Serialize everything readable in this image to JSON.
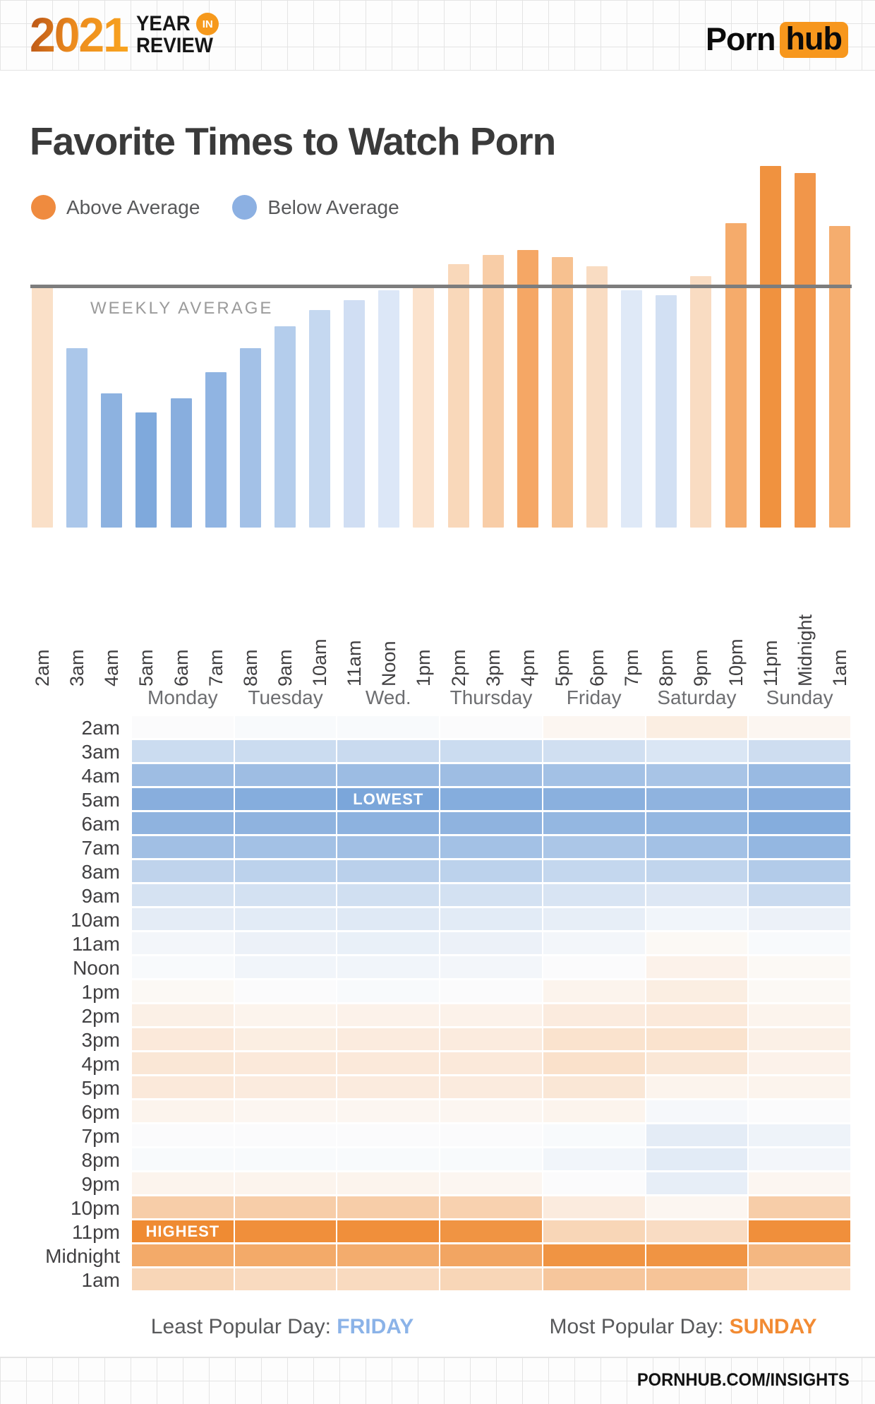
{
  "header": {
    "year": "2021",
    "tagline_word1": "YEAR",
    "tagline_in": "IN",
    "tagline_word2": "REVIEW",
    "brand_left": "Porn",
    "brand_right": "hub"
  },
  "title": "Favorite Times to Watch Porn",
  "legend": {
    "above": {
      "label": "Above Average",
      "color": "#ef8b3f"
    },
    "below": {
      "label": "Below Average",
      "color": "#8cb0e2"
    }
  },
  "chart_data": [
    {
      "type": "bar",
      "title": "Favorite Times to Watch Porn - traffic by hour",
      "categories": [
        "2am",
        "3am",
        "4am",
        "5am",
        "6am",
        "7am",
        "8am",
        "9am",
        "10am",
        "11am",
        "Noon",
        "1pm",
        "2pm",
        "3pm",
        "4pm",
        "5pm",
        "6pm",
        "7pm",
        "8pm",
        "9pm",
        "10pm",
        "11pm",
        "Midnight",
        "1am"
      ],
      "values": [
        101,
        75,
        56,
        48,
        54,
        65,
        75,
        84,
        91,
        95,
        99,
        101,
        110,
        114,
        116,
        113,
        109,
        99,
        97,
        105,
        127,
        151,
        148,
        126
      ],
      "bar_colors": [
        "#fae0c8",
        "#abc7ea",
        "#8db2e0",
        "#7fa9dc",
        "#88aede",
        "#90b4e2",
        "#a3c1e7",
        "#b4cdec",
        "#c5d8f0",
        "#d0def3",
        "#dce7f7",
        "#fbe2cc",
        "#f9d8ba",
        "#f8cda7",
        "#f5a765",
        "#f7c190",
        "#f9dcc2",
        "#dfe9f7",
        "#d2e0f3",
        "#f9dcc2",
        "#f5ab6b",
        "#f0923f",
        "#f1964a",
        "#f5ad6e"
      ],
      "average_line": {
        "label": "WEEKLY AVERAGE",
        "value": 100
      },
      "ylim": [
        0,
        160
      ],
      "unit": "index relative to weekly average (100 = average)",
      "grid": false,
      "legend_position": "top-left"
    },
    {
      "type": "heatmap",
      "title": "Traffic by day of week and hour",
      "columns": [
        "Monday",
        "Tuesday",
        "Wed.",
        "Thursday",
        "Friday",
        "Saturday",
        "Sunday"
      ],
      "rows": [
        "2am",
        "3am",
        "4am",
        "5am",
        "6am",
        "7am",
        "8am",
        "9am",
        "10am",
        "11am",
        "Noon",
        "1pm",
        "2pm",
        "3pm",
        "4pm",
        "5pm",
        "6pm",
        "7pm",
        "8pm",
        "9pm",
        "10pm",
        "11pm",
        "Midnight",
        "1am"
      ],
      "values": [
        [
          99,
          98,
          98,
          99,
          103,
          107,
          103
        ],
        [
          80,
          80,
          79,
          80,
          82,
          86,
          81
        ],
        [
          62,
          62,
          61,
          62,
          64,
          66,
          60
        ],
        [
          53,
          52,
          48,
          52,
          54,
          56,
          53
        ],
        [
          56,
          56,
          55,
          56,
          58,
          58,
          52
        ],
        [
          63,
          64,
          63,
          64,
          67,
          64,
          58
        ],
        [
          75,
          74,
          73,
          74,
          77,
          76,
          70
        ],
        [
          84,
          83,
          82,
          83,
          85,
          87,
          79
        ],
        [
          90,
          89,
          88,
          89,
          91,
          95,
          93
        ],
        [
          96,
          93,
          92,
          93,
          96,
          102,
          98
        ],
        [
          98,
          95,
          95,
          96,
          99,
          105,
          102
        ],
        [
          102,
          99,
          98,
          99,
          104,
          107,
          102
        ],
        [
          106,
          104,
          105,
          105,
          108,
          109,
          104
        ],
        [
          109,
          107,
          108,
          108,
          112,
          112,
          106
        ],
        [
          110,
          109,
          109,
          109,
          113,
          110,
          105
        ],
        [
          109,
          108,
          108,
          108,
          110,
          104,
          104
        ],
        [
          104,
          103,
          103,
          103,
          104,
          97,
          99
        ],
        [
          99,
          99,
          99,
          99,
          98,
          90,
          94
        ],
        [
          98,
          98,
          98,
          98,
          95,
          89,
          96
        ],
        [
          104,
          104,
          104,
          103,
          99,
          91,
          103
        ],
        [
          122,
          122,
          122,
          120,
          108,
          103,
          122
        ],
        [
          152,
          150,
          150,
          148,
          118,
          115,
          150
        ],
        [
          138,
          138,
          137,
          140,
          148,
          148,
          132
        ],
        [
          118,
          116,
          116,
          118,
          125,
          126,
          113
        ]
      ],
      "annotations": [
        {
          "row": "5am",
          "column": "Wed.",
          "label": "LOWEST"
        },
        {
          "row": "11pm",
          "column": "Monday",
          "label": "HIGHEST"
        }
      ],
      "color_scale": {
        "midpoint": 100,
        "above_color": "#ef8b33",
        "below_color": "#7ba6da",
        "neutral_color": "#fdfdfd",
        "range": 52
      }
    }
  ],
  "footer": {
    "least": {
      "label": "Least Popular Day:",
      "value": "FRIDAY",
      "color": "#8bb3e8"
    },
    "most": {
      "label": "Most Popular Day:",
      "value": "SUNDAY",
      "color": "#f28b33"
    }
  },
  "bottom_bar": {
    "text": "PORNHUB.COM/INSIGHTS"
  }
}
